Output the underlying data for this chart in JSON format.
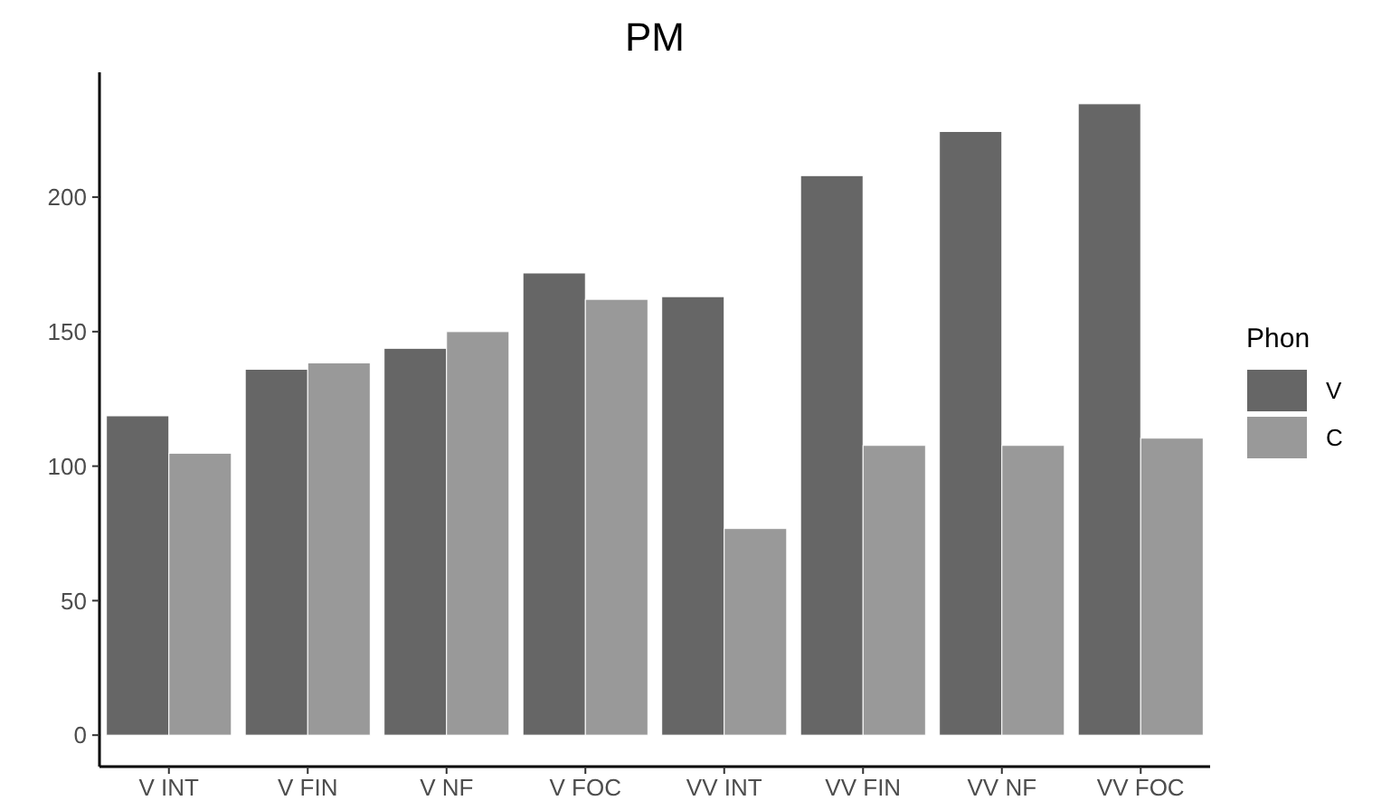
{
  "chart_data": {
    "type": "bar",
    "title": "PM",
    "legend_title": "Phon",
    "categories": [
      "V INT",
      "V FIN",
      "V NF",
      "V FOC",
      "VV INT",
      "VV FIN",
      "VV NF",
      "VV FOC"
    ],
    "series": [
      {
        "name": "V",
        "color": "#666666",
        "values": [
          118.7,
          136,
          143.8,
          171.8,
          163,
          208,
          224.4,
          234.7
        ]
      },
      {
        "name": "C",
        "color": "#999999",
        "values": [
          104.8,
          138.4,
          150,
          162,
          76.8,
          107.7,
          107.7,
          110.4
        ]
      }
    ],
    "ylim": [
      -11.7,
      246.4
    ],
    "yticks": [
      0,
      50,
      100,
      150,
      200
    ],
    "grid": false,
    "legend": "right"
  }
}
